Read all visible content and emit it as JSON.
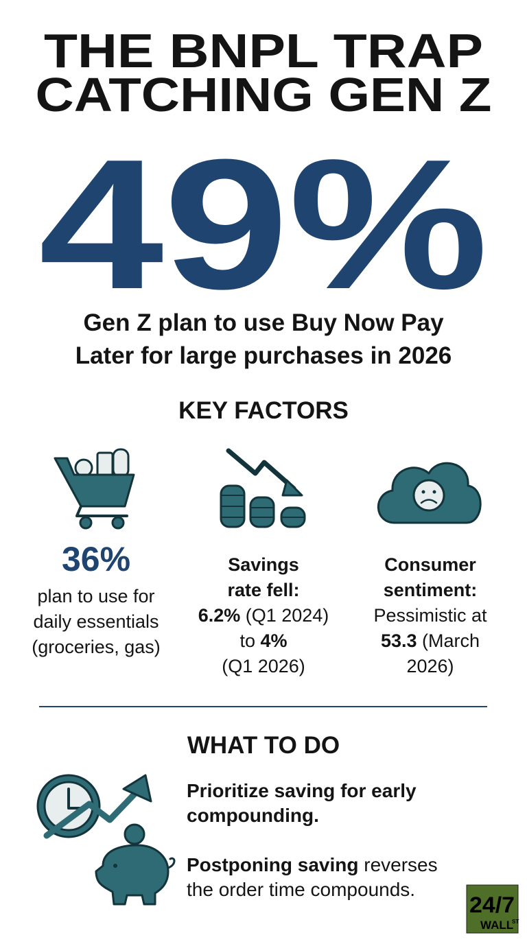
{
  "title_lines": [
    "THE BNPL TRAP",
    "CATCHING GEN Z"
  ],
  "headline_stat": "49%",
  "headline_lines": [
    "Gen Z plan to use Buy Now Pay",
    "Later for large purchases in 2026"
  ],
  "key_factors": {
    "heading": "KEY FACTORS",
    "factors": [
      {
        "stat": "36%",
        "lines": [
          [
            {
              "text": "plan to use for"
            }
          ],
          [
            {
              "text": "daily essentials"
            }
          ],
          [
            {
              "text": "(groceries, gas)"
            }
          ]
        ]
      },
      {
        "lines": [
          [
            {
              "text": "Savings",
              "bold": true
            }
          ],
          [
            {
              "text": "rate fell:",
              "bold": true
            }
          ],
          [
            {
              "text": "6.2%",
              "bold": true
            },
            {
              "text": " (Q1 2024)"
            }
          ],
          [
            {
              "text": "to "
            },
            {
              "text": "4%",
              "bold": true
            }
          ],
          [
            {
              "text": "(Q1 2026)"
            }
          ]
        ]
      },
      {
        "lines": [
          [
            {
              "text": "Consumer",
              "bold": true
            }
          ],
          [
            {
              "text": "sentiment:",
              "bold": true
            }
          ],
          [
            {
              "text": "Pessimistic at"
            }
          ],
          [
            {
              "text": "53.3",
              "bold": true
            },
            {
              "text": " (March"
            }
          ],
          [
            {
              "text": "2026)"
            }
          ]
        ]
      }
    ]
  },
  "what_to_do": {
    "heading": "WHAT TO DO",
    "items": [
      [
        [
          {
            "text": "Prioritize saving for early",
            "bold": true
          }
        ],
        [
          {
            "text": "compounding.",
            "bold": true
          }
        ]
      ],
      [
        [
          {
            "text": "Postponing saving",
            "bold": true
          },
          {
            "text": " reverses"
          }
        ],
        [
          {
            "text": "the order time compounds."
          }
        ]
      ]
    ]
  },
  "logo": {
    "top": "24/7",
    "bottom": "WALL",
    "sup": "ST"
  }
}
